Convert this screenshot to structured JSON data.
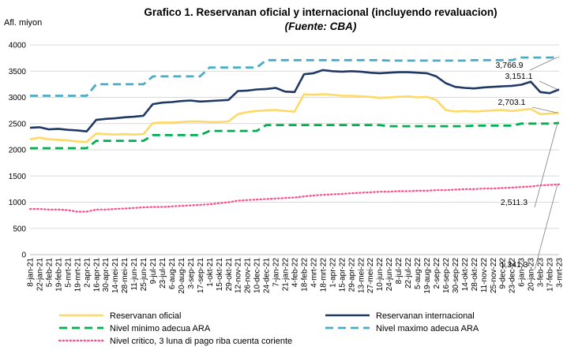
{
  "chart_data": {
    "type": "line",
    "title": "Grafico 1. Reservanan oficial y internacional (incluyendo revaluacion)",
    "subtitle": "(Fuente: CBA)",
    "ylabel": "Afl. miyon",
    "ylim": [
      0,
      4000
    ],
    "ytick_labels": [
      "0",
      "500",
      "1000",
      "1500",
      "2000",
      "2500",
      "3000",
      "3500",
      "4000"
    ],
    "grid": true,
    "legend_position": "bottom",
    "categories": [
      "8-jan-21",
      "22-jan-21",
      "5-feb-21",
      "19-feb-21",
      "5-mrt-21",
      "19-mrt-21",
      "2-apr-21",
      "16-apr-21",
      "30-apr-21",
      "14-mei-21",
      "28-mei-21",
      "11-jun-21",
      "25-jun-21",
      "9-jul-21",
      "23-jul-21",
      "6-aug-21",
      "20-aug-21",
      "3-sep-21",
      "17-sep-21",
      "1-okt-21",
      "15-okt-21",
      "29-okt-21",
      "12-nov-21",
      "26-nov-21",
      "10-dec-21",
      "24-dec-21",
      "7-jan-22",
      "21-jan-22",
      "4-feb-22",
      "18-feb-22",
      "4-mrt-22",
      "18-mrt-22",
      "1-apr-22",
      "15-apr-22",
      "29-apr-22",
      "13-mei-22",
      "27-mei-22",
      "10-jun-22",
      "24-jun-22",
      "8-jul-22",
      "22-jul-22",
      "5-aug-22",
      "19-aug-22",
      "2-sep-22",
      "16-sep-22",
      "30-sep-22",
      "14-okt-22",
      "28-okt-22",
      "11-nov-22",
      "25-nov-22",
      "9-dec-22",
      "23-dec-22",
      "6-jan-23",
      "20-jan-23",
      "3-feb-23",
      "17-feb-23",
      "3-mrt-23"
    ],
    "series": [
      {
        "name": "Reservanan oficial",
        "color": "#ffd966",
        "values": [
          2200,
          2230,
          2200,
          2190,
          2180,
          2160,
          2150,
          2310,
          2300,
          2290,
          2300,
          2290,
          2300,
          2510,
          2520,
          2520,
          2530,
          2540,
          2540,
          2530,
          2530,
          2540,
          2680,
          2720,
          2740,
          2750,
          2760,
          2740,
          2730,
          3060,
          3050,
          3060,
          3050,
          3030,
          3030,
          3020,
          3010,
          2990,
          3000,
          3010,
          3020,
          3000,
          3010,
          2950,
          2760,
          2730,
          2740,
          2730,
          2740,
          2750,
          2760,
          2740,
          2760,
          2780,
          2680,
          2690,
          2703.1
        ]
      },
      {
        "name": "Reservanan internacional",
        "color": "#1f3864",
        "values": [
          2420,
          2430,
          2390,
          2400,
          2380,
          2370,
          2350,
          2570,
          2590,
          2600,
          2620,
          2630,
          2650,
          2870,
          2900,
          2910,
          2930,
          2940,
          2920,
          2930,
          2940,
          2950,
          3120,
          3130,
          3150,
          3160,
          3180,
          3110,
          3100,
          3440,
          3460,
          3520,
          3500,
          3490,
          3500,
          3490,
          3470,
          3460,
          3470,
          3480,
          3480,
          3470,
          3460,
          3400,
          3270,
          3200,
          3180,
          3170,
          3190,
          3200,
          3210,
          3220,
          3240,
          3300,
          3100,
          3080,
          3151.1
        ]
      },
      {
        "name": "Nivel minimo adecua ARA",
        "color": "#00b050",
        "dashed": true,
        "values": [
          2030,
          2030,
          2030,
          2030,
          2030,
          2030,
          2030,
          2170,
          2170,
          2170,
          2170,
          2170,
          2170,
          2280,
          2280,
          2280,
          2280,
          2280,
          2280,
          2360,
          2360,
          2360,
          2360,
          2360,
          2360,
          2470,
          2470,
          2470,
          2470,
          2470,
          2470,
          2470,
          2470,
          2470,
          2470,
          2470,
          2470,
          2470,
          2450,
          2450,
          2450,
          2450,
          2450,
          2450,
          2450,
          2450,
          2450,
          2460,
          2460,
          2460,
          2460,
          2460,
          2500,
          2500,
          2500,
          2500,
          2511.3
        ]
      },
      {
        "name": "Nivel maximo adecua ARA",
        "color": "#4bacc6",
        "dashed": true,
        "values": [
          3030,
          3030,
          3030,
          3030,
          3030,
          3030,
          3030,
          3250,
          3250,
          3250,
          3250,
          3250,
          3250,
          3400,
          3400,
          3400,
          3400,
          3400,
          3400,
          3570,
          3570,
          3570,
          3570,
          3570,
          3570,
          3710,
          3710,
          3710,
          3710,
          3710,
          3710,
          3710,
          3710,
          3710,
          3710,
          3710,
          3710,
          3710,
          3700,
          3700,
          3700,
          3700,
          3700,
          3700,
          3700,
          3700,
          3700,
          3710,
          3710,
          3710,
          3710,
          3710,
          3760,
          3760,
          3760,
          3760,
          3766.9
        ]
      },
      {
        "name": "Nivel critico, 3 luna di pago riba cuenta coriente",
        "color": "#ff4f8b",
        "dotted": true,
        "values": [
          870,
          870,
          860,
          860,
          850,
          820,
          820,
          860,
          860,
          870,
          880,
          890,
          900,
          910,
          910,
          920,
          930,
          940,
          950,
          960,
          980,
          1000,
          1030,
          1040,
          1050,
          1060,
          1070,
          1080,
          1090,
          1110,
          1130,
          1140,
          1150,
          1160,
          1170,
          1180,
          1190,
          1200,
          1200,
          1210,
          1210,
          1220,
          1220,
          1230,
          1230,
          1240,
          1250,
          1250,
          1260,
          1260,
          1270,
          1280,
          1290,
          1300,
          1320,
          1330,
          1341.3
        ]
      }
    ],
    "data_labels": [
      {
        "series": 3,
        "text": "3,766.9"
      },
      {
        "series": 1,
        "text": "3,151.1"
      },
      {
        "series": 0,
        "text": "2,703.1"
      },
      {
        "series": 2,
        "text": "2,511.3"
      },
      {
        "series": 4,
        "text": "1,341.3"
      }
    ]
  }
}
